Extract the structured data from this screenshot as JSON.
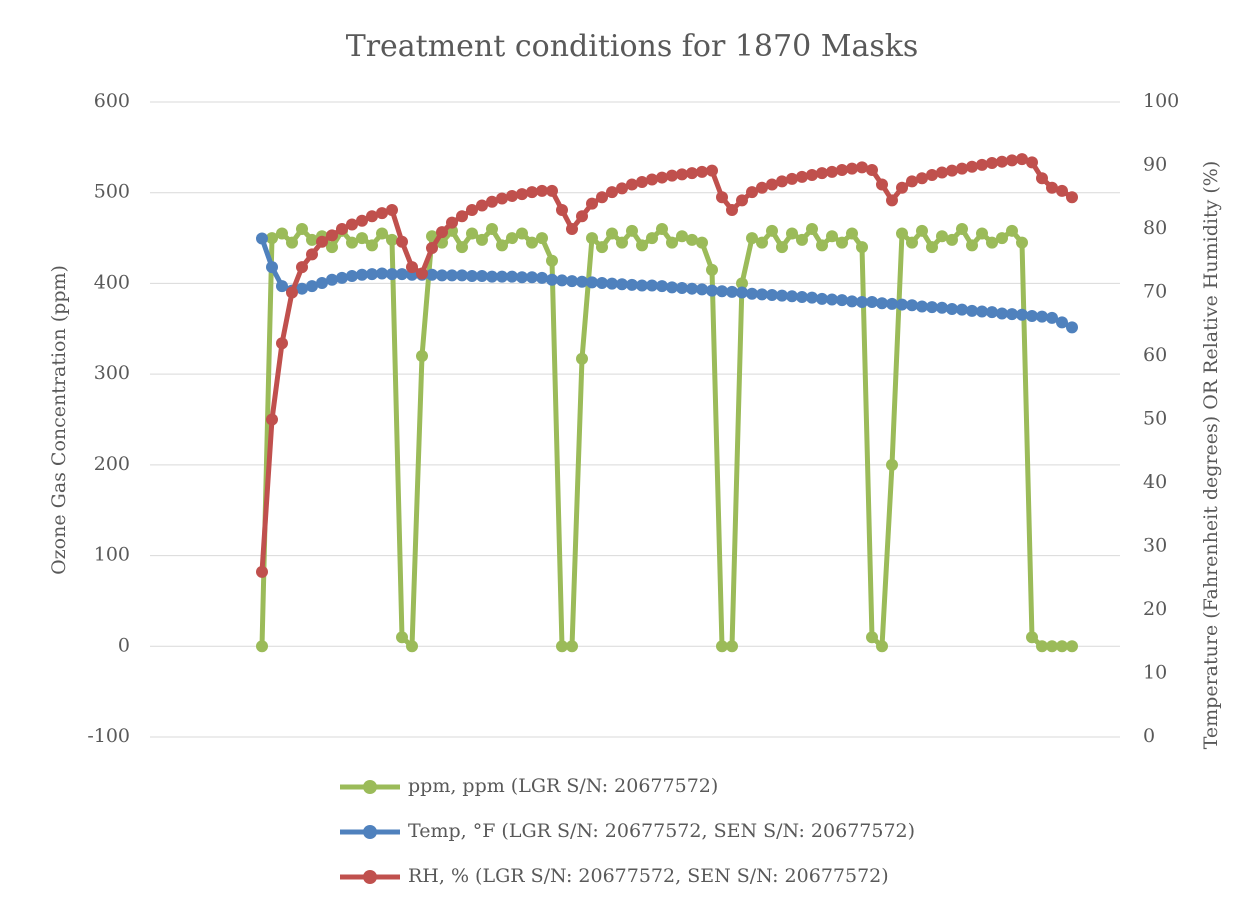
{
  "chart_data": {
    "type": "line",
    "title": "Treatment conditions for 1870 Masks",
    "y_label": "Ozone Gas Concentration (ppm)",
    "y2_label": "Temperature (Fahrenheit degrees) OR Relative Humidity (%)",
    "ylim": [
      -100,
      600
    ],
    "yticks": [
      -100,
      0,
      100,
      200,
      300,
      400,
      500,
      600
    ],
    "y2lim": [
      0,
      100
    ],
    "y2ticks": [
      0,
      10,
      20,
      30,
      40,
      50,
      60,
      70,
      80,
      90,
      100
    ],
    "grid": true,
    "legend": "bottom",
    "series": [
      {
        "name": "ppm, ppm (LGR S/N: 20677572)",
        "color": "#9bbb59",
        "values": [
          0,
          450,
          455,
          445,
          460,
          448,
          452,
          440,
          458,
          445,
          450,
          442,
          455,
          448,
          10,
          0,
          320,
          452,
          445,
          458,
          440,
          455,
          448,
          460,
          442,
          450,
          455,
          445,
          450,
          425,
          0,
          0,
          317,
          450,
          440,
          455,
          445,
          458,
          442,
          450,
          460,
          445,
          452,
          448,
          445,
          415,
          0,
          0,
          400,
          450,
          445,
          458,
          440,
          455,
          448,
          460,
          442,
          452,
          445,
          455,
          440,
          10,
          0,
          200,
          455,
          445,
          458,
          440,
          452,
          448,
          460,
          442,
          455,
          445,
          450,
          458,
          445,
          10,
          0,
          0,
          0,
          0
        ]
      },
      {
        "name": "Temp, °F (LGR S/N: 20677572, SEN S/N: 20677572)",
        "color": "#4f81bd",
        "axis": "y2",
        "values": [
          78.5,
          74,
          71,
          70.3,
          70.6,
          71,
          71.5,
          72,
          72.3,
          72.6,
          72.8,
          72.9,
          73,
          72.9,
          72.9,
          72.8,
          72.8,
          72.8,
          72.7,
          72.7,
          72.7,
          72.6,
          72.6,
          72.5,
          72.5,
          72.5,
          72.4,
          72.4,
          72.3,
          72,
          71.9,
          71.8,
          71.7,
          71.6,
          71.5,
          71.4,
          71.3,
          71.2,
          71.1,
          71.1,
          71,
          70.8,
          70.7,
          70.6,
          70.5,
          70.3,
          70.2,
          70.1,
          70,
          69.8,
          69.7,
          69.6,
          69.5,
          69.4,
          69.3,
          69.2,
          69,
          68.9,
          68.8,
          68.6,
          68.5,
          68.5,
          68.3,
          68.2,
          68.1,
          68,
          67.8,
          67.7,
          67.6,
          67.4,
          67.3,
          67.1,
          67,
          66.9,
          66.7,
          66.6,
          66.5,
          66.3,
          66.2,
          66,
          65.3,
          64.5
        ]
      },
      {
        "name": "RH, % (LGR S/N: 20677572, SEN S/N: 20677572)",
        "color": "#c0504d",
        "axis": "y2",
        "values": [
          26,
          50,
          62,
          70,
          74,
          76,
          78,
          79,
          80,
          80.7,
          81.3,
          82,
          82.5,
          83,
          78,
          74,
          73,
          77,
          79.5,
          81,
          82,
          83,
          83.7,
          84.3,
          84.8,
          85.2,
          85.5,
          85.8,
          86,
          86,
          83,
          80,
          82,
          84,
          85,
          85.8,
          86.4,
          87,
          87.4,
          87.8,
          88.1,
          88.4,
          88.6,
          88.8,
          89,
          89.2,
          85,
          83,
          84.5,
          85.8,
          86.5,
          87,
          87.5,
          87.9,
          88.2,
          88.5,
          88.8,
          89,
          89.3,
          89.5,
          89.7,
          89.3,
          87,
          84.5,
          86.5,
          87.5,
          88,
          88.5,
          88.9,
          89.2,
          89.5,
          89.8,
          90.1,
          90.4,
          90.6,
          90.8,
          91,
          90.5,
          88,
          86.5,
          86,
          85
        ]
      }
    ]
  }
}
